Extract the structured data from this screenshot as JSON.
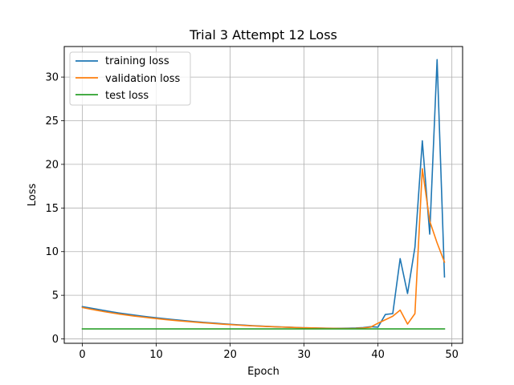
{
  "chart_data": {
    "type": "line",
    "title": "Trial 3 Attempt 12 Loss",
    "xlabel": "Epoch",
    "ylabel": "Loss",
    "xlim": [
      -2.45,
      51.45
    ],
    "ylim": [
      -0.5,
      33.5
    ],
    "xticks": [
      0,
      10,
      20,
      30,
      40,
      50
    ],
    "yticks": [
      0,
      5,
      10,
      15,
      20,
      25,
      30
    ],
    "grid": true,
    "legend_position": "top-left",
    "series": [
      {
        "name": "training loss",
        "color": "#1f77b4",
        "x": [
          0,
          1,
          2,
          3,
          4,
          5,
          6,
          7,
          8,
          9,
          10,
          11,
          12,
          13,
          14,
          15,
          16,
          17,
          18,
          19,
          20,
          21,
          22,
          23,
          24,
          25,
          26,
          27,
          28,
          29,
          30,
          31,
          32,
          33,
          34,
          35,
          36,
          37,
          38,
          39,
          40,
          41,
          42,
          43,
          44,
          45,
          46,
          47,
          48,
          49
        ],
        "y": [
          3.7,
          3.55,
          3.4,
          3.25,
          3.1,
          2.97,
          2.85,
          2.73,
          2.62,
          2.52,
          2.42,
          2.33,
          2.24,
          2.16,
          2.08,
          2.0,
          1.93,
          1.86,
          1.8,
          1.74,
          1.68,
          1.62,
          1.57,
          1.52,
          1.48,
          1.44,
          1.4,
          1.37,
          1.34,
          1.31,
          1.28,
          1.26,
          1.24,
          1.23,
          1.22,
          1.22,
          1.23,
          1.25,
          1.3,
          1.4,
          1.35,
          2.8,
          2.9,
          9.2,
          5.2,
          10.5,
          22.7,
          12.0,
          32.0,
          7.1
        ]
      },
      {
        "name": "validation loss",
        "color": "#ff7f0e",
        "x": [
          0,
          1,
          2,
          3,
          4,
          5,
          6,
          7,
          8,
          9,
          10,
          11,
          12,
          13,
          14,
          15,
          16,
          17,
          18,
          19,
          20,
          21,
          22,
          23,
          24,
          25,
          26,
          27,
          28,
          29,
          30,
          31,
          32,
          33,
          34,
          35,
          36,
          37,
          38,
          39,
          40,
          41,
          42,
          43,
          44,
          45,
          46,
          47,
          48,
          49
        ],
        "y": [
          3.6,
          3.43,
          3.27,
          3.12,
          2.98,
          2.85,
          2.73,
          2.62,
          2.52,
          2.42,
          2.33,
          2.24,
          2.16,
          2.08,
          2.01,
          1.94,
          1.87,
          1.81,
          1.75,
          1.69,
          1.64,
          1.59,
          1.54,
          1.5,
          1.46,
          1.42,
          1.39,
          1.36,
          1.33,
          1.3,
          1.28,
          1.26,
          1.24,
          1.22,
          1.21,
          1.2,
          1.2,
          1.21,
          1.25,
          1.35,
          1.8,
          2.2,
          2.6,
          3.3,
          1.7,
          2.9,
          19.5,
          13.5,
          11.0,
          8.8
        ]
      },
      {
        "name": "test loss",
        "color": "#2ca02c",
        "x": [
          0,
          49
        ],
        "y": [
          1.15,
          1.15
        ]
      }
    ]
  }
}
